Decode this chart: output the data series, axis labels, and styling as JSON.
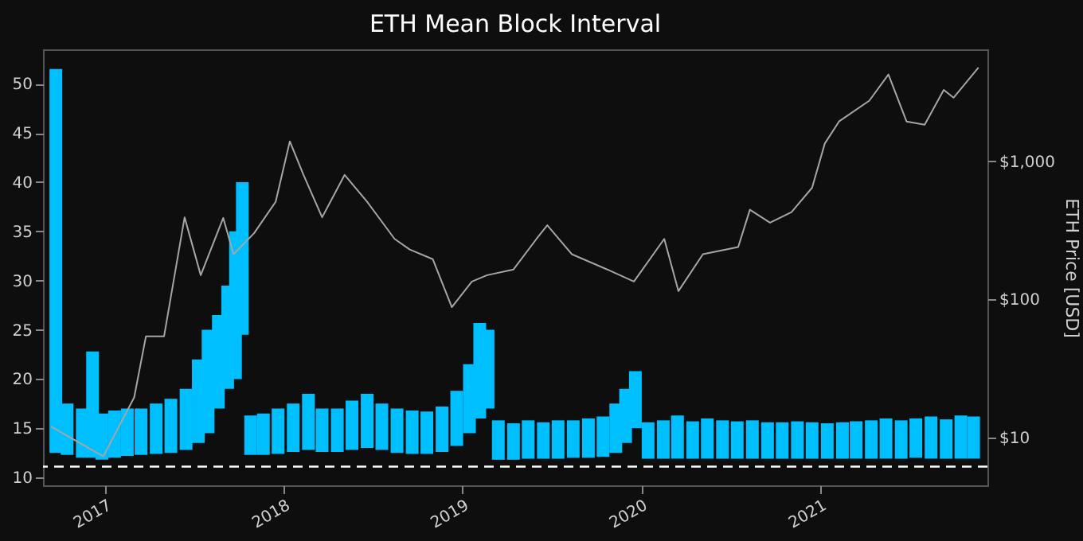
{
  "chart_data": {
    "type": "bar",
    "title": "ETH Mean Block Interval",
    "y2label": "ETH Price [USD]",
    "xlim": [
      "2016-09-12",
      "2021-11-22"
    ],
    "xticks": [
      "2017",
      "2018",
      "2019",
      "2020",
      "2021"
    ],
    "ylim": [
      9.2,
      53.5
    ],
    "yticks": [
      10,
      15,
      20,
      25,
      30,
      35,
      40,
      45,
      50
    ],
    "y2lim": [
      4.5,
      6500
    ],
    "y2ticks": [
      {
        "value": 10,
        "label": "$10"
      },
      {
        "value": 100,
        "label": "$100"
      },
      {
        "value": 1000,
        "label": "$1,000"
      }
    ],
    "log": "y2",
    "grid": false,
    "ref_lines": [
      {
        "axis": "y",
        "value": 11.1,
        "color": "#ffffff",
        "line_style": "dashed"
      }
    ],
    "series": [
      {
        "color": "#00bfff",
        "x": [
          "2016-09-22",
          "2016-10-15",
          "2016-11-15",
          "2016-12-06",
          "2016-12-25",
          "2017-01-20",
          "2017-02-15",
          "2017-03-15",
          "2017-04-15",
          "2017-05-15",
          "2017-06-15",
          "2017-07-10",
          "2017-07-30",
          "2017-08-20",
          "2017-09-08",
          "2017-09-24",
          "2017-10-08",
          "2017-10-25",
          "2017-11-20",
          "2017-12-20",
          "2018-01-20",
          "2018-02-20",
          "2018-03-20",
          "2018-04-20",
          "2018-05-20",
          "2018-06-20",
          "2018-07-20",
          "2018-08-20",
          "2018-09-20",
          "2018-10-20",
          "2018-11-20",
          "2018-12-20",
          "2019-01-15",
          "2019-02-05",
          "2019-02-22",
          "2019-03-15",
          "2019-04-15",
          "2019-05-15",
          "2019-06-15",
          "2019-07-15",
          "2019-08-15",
          "2019-09-15",
          "2019-10-15",
          "2019-11-10",
          "2019-11-30",
          "2019-12-20",
          "2020-01-15",
          "2020-02-15",
          "2020-03-15",
          "2020-04-15",
          "2020-05-15",
          "2020-06-15",
          "2020-07-15",
          "2020-08-15",
          "2020-09-15",
          "2020-10-15",
          "2020-11-15",
          "2020-12-15",
          "2021-01-15",
          "2021-02-15",
          "2021-03-15",
          "2021-04-15",
          "2021-05-15",
          "2021-06-15",
          "2021-07-15",
          "2021-08-15",
          "2021-09-15",
          "2021-10-15",
          "2021-11-10"
        ],
        "base": [
          12.5,
          12.3,
          12.0,
          12.0,
          11.8,
          12.0,
          12.2,
          12.3,
          12.4,
          12.5,
          12.8,
          13.5,
          14.5,
          17,
          19,
          20,
          24.5,
          12.3,
          12.3,
          12.4,
          12.6,
          12.8,
          12.6,
          12.6,
          12.8,
          13,
          12.8,
          12.5,
          12.4,
          12.4,
          12.6,
          13.2,
          14.5,
          16,
          17,
          11.8,
          11.8,
          11.9,
          11.9,
          11.9,
          12,
          12,
          12.1,
          12.5,
          13.5,
          15,
          11.9,
          11.9,
          11.9,
          11.9,
          11.9,
          11.9,
          11.9,
          11.9,
          11.9,
          11.9,
          11.9,
          11.9,
          11.9,
          11.9,
          11.9,
          11.9,
          11.9,
          11.9,
          12,
          11.9,
          11.9,
          11.9,
          11.9
        ],
        "values": [
          39,
          5.2,
          5,
          10.8,
          4.7,
          4.8,
          4.8,
          4.7,
          5.1,
          5.5,
          6.2,
          8.5,
          10.5,
          9.5,
          10.5,
          15,
          15.5,
          4,
          4.2,
          4.6,
          4.9,
          5.7,
          4.4,
          4.4,
          5,
          5.5,
          4.7,
          4.5,
          4.4,
          4.3,
          4.6,
          5.6,
          7,
          9.7,
          8,
          4,
          3.7,
          3.9,
          3.7,
          3.9,
          3.8,
          4,
          4.1,
          5,
          5.5,
          5.8,
          3.7,
          3.9,
          4.4,
          3.8,
          4.1,
          3.9,
          3.8,
          3.9,
          3.7,
          3.7,
          3.8,
          3.7,
          3.6,
          3.7,
          3.8,
          3.9,
          4.1,
          3.9,
          4,
          4.3,
          4,
          4.4,
          4.3
        ]
      },
      {
        "type": "line",
        "axis": "y2",
        "color": "#a6a6a6",
        "x": [
          "2016-09-12",
          "2016-12-28",
          "2017-03-01",
          "2017-03-25",
          "2017-05-01",
          "2017-06-12",
          "2017-07-15",
          "2017-08-30",
          "2017-09-20",
          "2017-11-01",
          "2017-12-15",
          "2018-01-13",
          "2018-02-10",
          "2018-03-20",
          "2018-05-05",
          "2018-06-20",
          "2018-08-15",
          "2018-09-15",
          "2018-11-01",
          "2018-12-10",
          "2019-01-20",
          "2019-02-20",
          "2019-04-15",
          "2019-06-01",
          "2019-06-23",
          "2019-08-12",
          "2019-10-27",
          "2019-12-17",
          "2020-02-17",
          "2020-03-17",
          "2020-05-06",
          "2020-07-17",
          "2020-08-10",
          "2020-09-20",
          "2020-11-03",
          "2020-12-15",
          "2021-01-10",
          "2021-02-08",
          "2021-04-11",
          "2021-05-20",
          "2021-06-26",
          "2021-08-02",
          "2021-09-10",
          "2021-09-30",
          "2021-11-20"
        ],
        "values": [
          12,
          7.3,
          19.5,
          54,
          54,
          394,
          150,
          390,
          213,
          302,
          510,
          1400,
          800,
          394,
          800,
          510,
          275,
          230,
          196,
          88,
          135,
          150,
          165,
          275,
          345,
          213,
          163,
          135,
          275,
          115,
          213,
          240,
          447,
          360,
          430,
          645,
          1350,
          1950,
          2760,
          4270,
          1950,
          1850,
          3300,
          2900,
          4800
        ]
      }
    ]
  }
}
